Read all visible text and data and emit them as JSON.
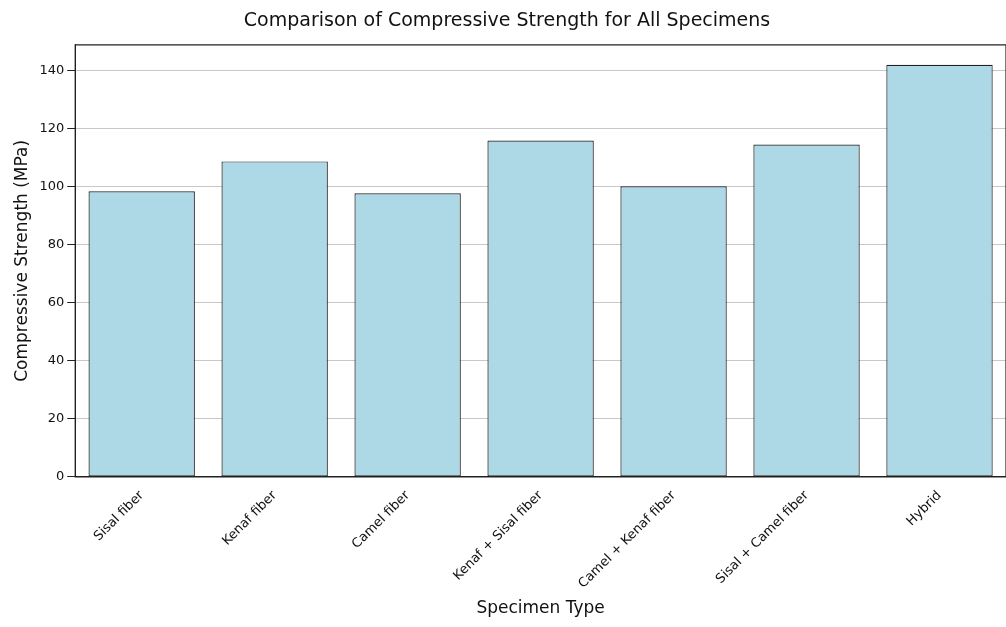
{
  "chart_data": {
    "type": "bar",
    "title": "Comparison of Compressive Strength for All Specimens",
    "xlabel": "Specimen Type",
    "ylabel": "Compressive Strength (MPa)",
    "categories": [
      "Sisal fiber",
      "Kenaf fiber",
      "Camel fiber",
      "Kenaf + Sisal fiber",
      "Camel + Kenaf fiber",
      "Sisal + Camel fiber",
      "Hybrid"
    ],
    "values": [
      98.5,
      108.8,
      97.8,
      116,
      100.2,
      114.6,
      142.1
    ],
    "color": "#add8e6",
    "ylim": [
      0,
      149
    ],
    "yticks": [
      0,
      20,
      40,
      60,
      80,
      100,
      120,
      140
    ],
    "grid": "y"
  }
}
